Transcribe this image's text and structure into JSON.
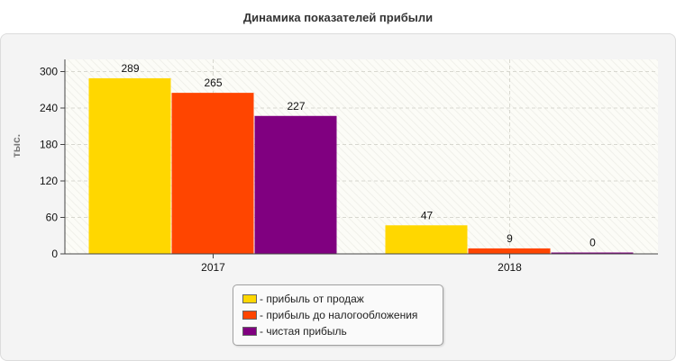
{
  "chart_data": {
    "type": "bar",
    "title": "Динамика показателей прибыли",
    "xlabel": "",
    "ylabel": "тыс.",
    "ylim": [
      0,
      320
    ],
    "yticks": [
      0,
      60,
      120,
      180,
      240,
      300
    ],
    "categories": [
      "2017",
      "2018"
    ],
    "series": [
      {
        "name": "- прибыль от продаж",
        "color": "#FFD700",
        "values": [
          289,
          47
        ]
      },
      {
        "name": "- прибыль до налогообложения",
        "color": "#FF4500",
        "values": [
          265,
          9
        ]
      },
      {
        "name": "- чистая прибыль",
        "color": "#800080",
        "values": [
          227,
          0
        ]
      }
    ],
    "grid": true,
    "legend_position": "bottom"
  }
}
